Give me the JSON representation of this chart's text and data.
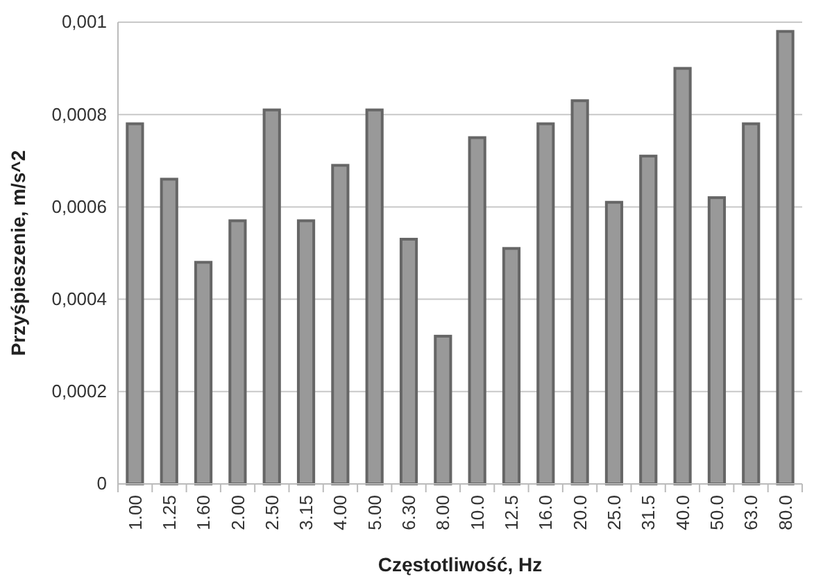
{
  "chart_data": {
    "type": "bar",
    "xlabel": "Częstotliwość, Hz",
    "ylabel": "Przyśpieszenie, m/s^2",
    "categories": [
      "1.00",
      "1.25",
      "1.60",
      "2.00",
      "2.50",
      "3.15",
      "4.00",
      "5.00",
      "6.30",
      "8.00",
      "10.0",
      "12.5",
      "16.0",
      "20.0",
      "25.0",
      "31.5",
      "40.0",
      "50.0",
      "63.0",
      "80.0"
    ],
    "values": [
      0.00078,
      0.00066,
      0.00048,
      0.00057,
      0.00081,
      0.00057,
      0.00069,
      0.00081,
      0.00053,
      0.00032,
      0.00075,
      0.00051,
      0.00078,
      0.00083,
      0.00061,
      0.00071,
      0.0009,
      0.00062,
      0.00078,
      0.00098
    ],
    "color": "#999999",
    "ylim": [
      0,
      0.001
    ],
    "yticks": [
      0,
      {
        "value": 0.0002,
        "label": "0,0002"
      },
      {
        "value": 0.0004,
        "label": "0,0004"
      },
      {
        "value": 0.0006,
        "label": "0,0006"
      },
      {
        "value": 0.0008,
        "label": "0,0008"
      },
      {
        "value": 0.001,
        "label": "0,001"
      }
    ],
    "grid": "y"
  }
}
